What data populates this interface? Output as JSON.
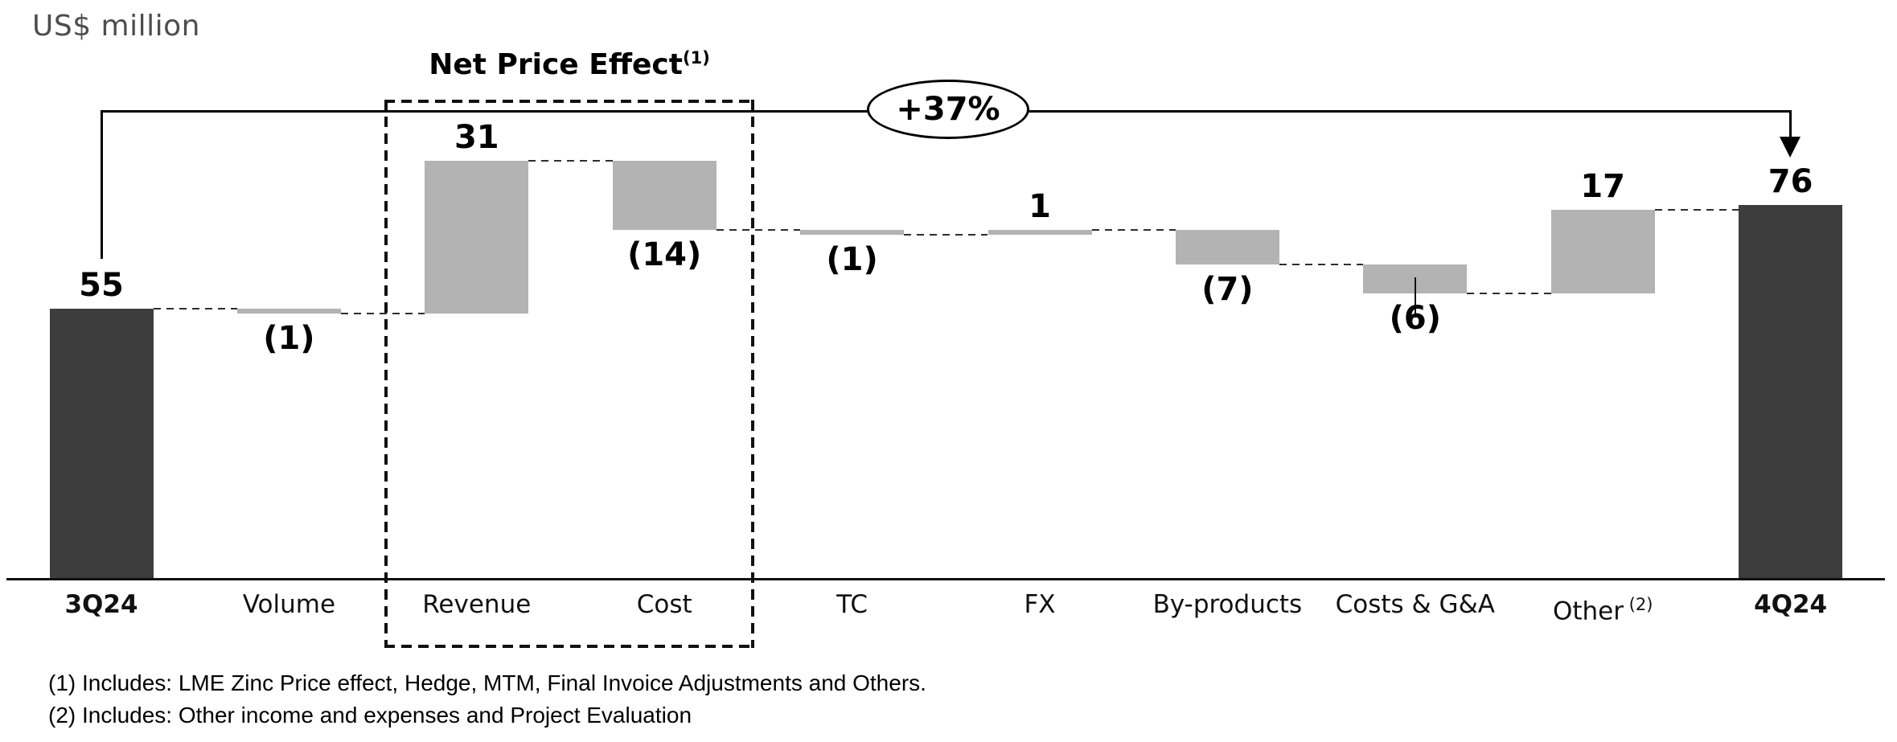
{
  "title": "US$ million",
  "chart_data": {
    "type": "bar",
    "subtype": "waterfall",
    "title": "US$ million",
    "xlabel": "",
    "ylabel": "US$ million",
    "ylim": [
      0,
      90
    ],
    "grid": false,
    "categories": [
      "3Q24",
      "Volume",
      "Revenue",
      "Cost",
      "TC",
      "FX",
      "By-products",
      "Costs & G&A",
      "Other",
      "4Q24"
    ],
    "bars": [
      {
        "slug": "3q24",
        "category": "3Q24",
        "category_sup": "",
        "kind": "total",
        "value": 55,
        "display": "55",
        "label_pos": "above"
      },
      {
        "slug": "volume",
        "category": "Volume",
        "category_sup": "",
        "kind": "delta",
        "value": -1,
        "display": "(1)",
        "label_pos": "below"
      },
      {
        "slug": "revenue",
        "category": "Revenue",
        "category_sup": "",
        "kind": "delta",
        "value": 31,
        "display": "31",
        "label_pos": "above"
      },
      {
        "slug": "cost",
        "category": "Cost",
        "category_sup": "",
        "kind": "delta",
        "value": -14,
        "display": "(14)",
        "label_pos": "below"
      },
      {
        "slug": "tc",
        "category": "TC",
        "category_sup": "",
        "kind": "delta",
        "value": -1,
        "display": "(1)",
        "label_pos": "below"
      },
      {
        "slug": "fx",
        "category": "FX",
        "category_sup": "",
        "kind": "delta",
        "value": 1,
        "display": "1",
        "label_pos": "above"
      },
      {
        "slug": "by-products",
        "category": "By-products",
        "category_sup": "",
        "kind": "delta",
        "value": -7,
        "display": "(7)",
        "label_pos": "below"
      },
      {
        "slug": "costs-ga",
        "category": "Costs & G&A",
        "category_sup": "",
        "kind": "delta",
        "value": -6,
        "display": "(6)",
        "label_pos": "below",
        "leader_line": true
      },
      {
        "slug": "other",
        "category": "Other",
        "category_sup": "(2)",
        "kind": "delta",
        "value": 17,
        "display": "17",
        "label_pos": "above"
      },
      {
        "slug": "4q24",
        "category": "4Q24",
        "category_sup": "",
        "kind": "total",
        "value": 76,
        "display": "76",
        "label_pos": "above"
      }
    ],
    "annotations": {
      "net_price_box": {
        "label": "Net Price Effect",
        "sup": "(1)",
        "from_category": "Revenue",
        "to_category": "Cost"
      },
      "growth_arrow": {
        "label": "+37%",
        "from_category": "3Q24",
        "to_category": "4Q24"
      }
    },
    "colors": {
      "total_bar": "#3d3d3d",
      "delta_bar": "#b3b3b3",
      "connector": "#2e2e2e",
      "axis": "#111111",
      "title_text": "#4d4d4d",
      "label_text": "#000000"
    },
    "legend": null
  },
  "footnotes": [
    "(1) Includes: LME Zinc Price effect, Hedge, MTM, Final Invoice Adjustments and Others.",
    "(2) Includes: Other income and expenses and Project Evaluation"
  ]
}
